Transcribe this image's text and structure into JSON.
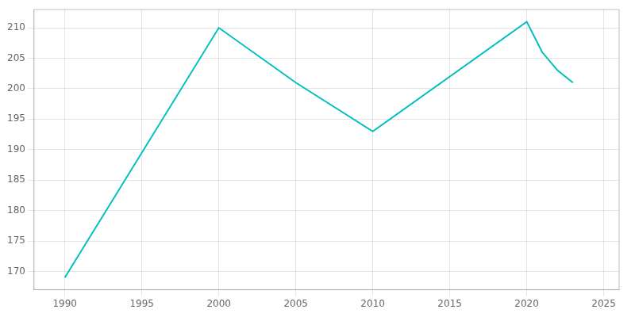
{
  "chart_data": {
    "type": "line",
    "x": [
      1990,
      2000,
      2005,
      2010,
      2020,
      2021,
      2022,
      2023
    ],
    "values": [
      169,
      210,
      201,
      193,
      211,
      206,
      203,
      201
    ],
    "color": "#00BFBF",
    "xlim": [
      1988,
      2026
    ],
    "ylim": [
      167,
      213
    ],
    "xticks": [
      1990,
      1995,
      2000,
      2005,
      2010,
      2015,
      2020,
      2025
    ],
    "yticks": [
      170,
      175,
      180,
      185,
      190,
      195,
      200,
      205,
      210
    ],
    "grid": true
  }
}
